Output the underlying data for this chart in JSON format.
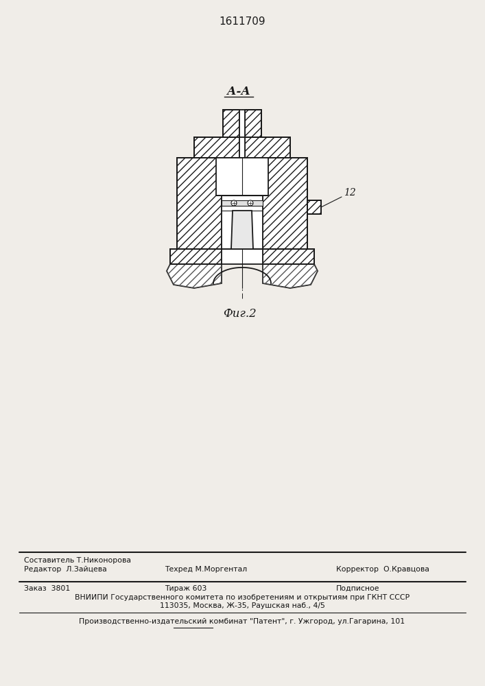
{
  "patent_number": "1611709",
  "fig_label": "Фиг.2",
  "section_label": "А-А",
  "part_label_12": "12",
  "bg_color": "#f0ede8",
  "line_color": "#1a1a1a",
  "editor_line": "Редактор  Л.Зайцева",
  "compiler_line1": "Составитель Т.Никонорова",
  "compiler_line2": "Техред М.Моргентал",
  "corrector_line": "Корректор  О.Кравцова",
  "order_line": "Заказ  3801",
  "print_run_line": "Тираж 603",
  "subscription_line": "Подписное",
  "vniipи_line1": "ВНИИПИ Государственного комитета по изобретениям и открытиям при ГКНТ СССР",
  "vniipи_line2": "113035, Москва, Ж-35, Раушская наб., 4/5",
  "publisher_line": "Производственно-издательский комбинат \"Патент\", г. Ужгород, ул.Гагарина, 101"
}
